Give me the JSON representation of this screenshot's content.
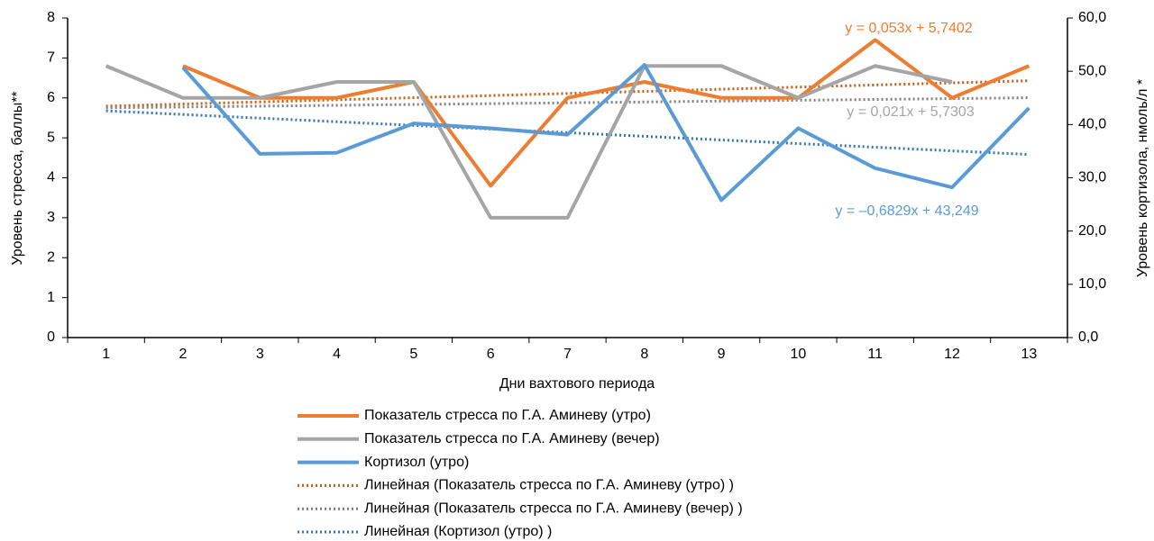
{
  "chart_data": {
    "type": "line",
    "x_label": "Дни вахтового периода",
    "y_label": "Уровень стресса, баллы**",
    "y2_label": "Уровень кортизола, нмоль/л *",
    "categories": [
      "1",
      "2",
      "3",
      "4",
      "5",
      "6",
      "7",
      "8",
      "9",
      "10",
      "11",
      "12",
      "13"
    ],
    "ylim": [
      0,
      8
    ],
    "yticks": [
      0,
      1,
      2,
      3,
      4,
      5,
      6,
      7,
      8
    ],
    "y2lim": [
      0,
      60
    ],
    "y2ticks": [
      {
        "value": 0,
        "label": "0,0"
      },
      {
        "value": 10,
        "label": "10,0"
      },
      {
        "value": 20,
        "label": "20,0"
      },
      {
        "value": 30,
        "label": "30,0"
      },
      {
        "value": 40,
        "label": "40,0"
      },
      {
        "value": 50,
        "label": "50,0"
      },
      {
        "value": 60,
        "label": "60,0"
      }
    ],
    "grid": false,
    "series": [
      {
        "name": "Показатель стресса по Г.А. Аминеву (утро)",
        "color": "#ED7D31",
        "values": [
          null,
          6.8,
          6.0,
          6.0,
          6.4,
          3.8,
          6.0,
          6.4,
          6.0,
          6.0,
          7.45,
          6.0,
          6.8
        ]
      },
      {
        "name": "Показатель стресса по Г.А. Аминеву (вечер)",
        "color": "#A5A5A5",
        "values": [
          6.8,
          6.0,
          6.0,
          6.4,
          6.4,
          3.0,
          3.0,
          6.8,
          6.8,
          6.0,
          6.8,
          6.4,
          null
        ]
      },
      {
        "name": "Кортизол (утро)",
        "color": "#5B9BD5",
        "axis": "y2",
        "values": [
          null,
          50.7,
          34.5,
          34.7,
          40.2,
          39.3,
          38.1,
          51.2,
          25.8,
          39.3,
          31.8,
          28.2,
          43.1
        ]
      }
    ],
    "trendlines": [
      {
        "name": "Линейная (Показатель стресса по Г.А. Аминеву (утро) )",
        "color": "#C55A11",
        "slope": 0.053,
        "intercept": 5.7402,
        "equation": "y = 0,053x + 5,7402",
        "label_color": "#ED7D31"
      },
      {
        "name": "Линейная (Показатель стресса по Г.А. Аминеву (вечер) )",
        "color": "#7F7F7F",
        "slope": 0.021,
        "intercept": 5.7303,
        "equation": "y = 0,021x + 5,7303",
        "label_color": "#A5A5A5"
      },
      {
        "name": "Линейная (Кортизол (утро) )",
        "color": "#2E75B6",
        "axis": "y2",
        "slope": -0.6829,
        "intercept": 43.249,
        "equation": "y = –0,6829x + 43,249",
        "label_color": "#5B9BD5"
      }
    ]
  }
}
